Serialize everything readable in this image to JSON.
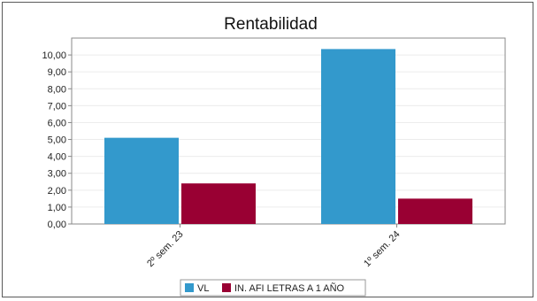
{
  "chart_data": {
    "type": "bar",
    "title": "Rentabilidad",
    "categories": [
      "2º sem. 23",
      "1º sem. 24"
    ],
    "series": [
      {
        "name": "VL",
        "values": [
          5.1,
          10.35
        ],
        "color": "#3399cc"
      },
      {
        "name": "IN. AFI LETRAS A 1 AÑO",
        "values": [
          2.4,
          1.5
        ],
        "color": "#990033"
      }
    ],
    "ylim": [
      0,
      11
    ],
    "yticks": [
      "0,00",
      "1,00",
      "2,00",
      "3,00",
      "4,00",
      "5,00",
      "6,00",
      "7,00",
      "8,00",
      "9,00",
      "10,00"
    ],
    "grid": true,
    "legend_position": "bottom"
  }
}
